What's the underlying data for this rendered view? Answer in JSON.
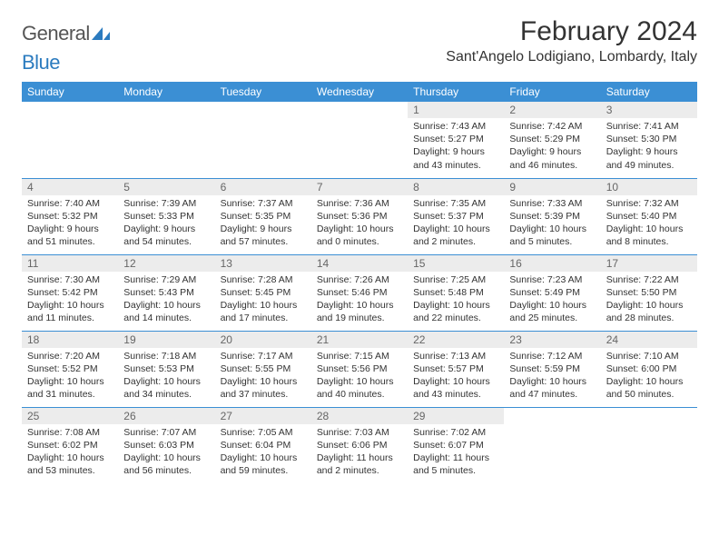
{
  "brand": {
    "part1": "General",
    "part2": "Blue"
  },
  "title": "February 2024",
  "location": "Sant'Angelo Lodigiano, Lombardy, Italy",
  "colors": {
    "header_bg": "#3b8fd4",
    "header_text": "#ffffff",
    "daynum_bg": "#ececec",
    "row_border": "#3b8fd4",
    "brand_blue": "#2b7bbf"
  },
  "weekdays": [
    "Sunday",
    "Monday",
    "Tuesday",
    "Wednesday",
    "Thursday",
    "Friday",
    "Saturday"
  ],
  "weeks": [
    [
      null,
      null,
      null,
      null,
      {
        "n": "1",
        "sr": "7:43 AM",
        "ss": "5:27 PM",
        "dl": "9 hours and 43 minutes."
      },
      {
        "n": "2",
        "sr": "7:42 AM",
        "ss": "5:29 PM",
        "dl": "9 hours and 46 minutes."
      },
      {
        "n": "3",
        "sr": "7:41 AM",
        "ss": "5:30 PM",
        "dl": "9 hours and 49 minutes."
      }
    ],
    [
      {
        "n": "4",
        "sr": "7:40 AM",
        "ss": "5:32 PM",
        "dl": "9 hours and 51 minutes."
      },
      {
        "n": "5",
        "sr": "7:39 AM",
        "ss": "5:33 PM",
        "dl": "9 hours and 54 minutes."
      },
      {
        "n": "6",
        "sr": "7:37 AM",
        "ss": "5:35 PM",
        "dl": "9 hours and 57 minutes."
      },
      {
        "n": "7",
        "sr": "7:36 AM",
        "ss": "5:36 PM",
        "dl": "10 hours and 0 minutes."
      },
      {
        "n": "8",
        "sr": "7:35 AM",
        "ss": "5:37 PM",
        "dl": "10 hours and 2 minutes."
      },
      {
        "n": "9",
        "sr": "7:33 AM",
        "ss": "5:39 PM",
        "dl": "10 hours and 5 minutes."
      },
      {
        "n": "10",
        "sr": "7:32 AM",
        "ss": "5:40 PM",
        "dl": "10 hours and 8 minutes."
      }
    ],
    [
      {
        "n": "11",
        "sr": "7:30 AM",
        "ss": "5:42 PM",
        "dl": "10 hours and 11 minutes."
      },
      {
        "n": "12",
        "sr": "7:29 AM",
        "ss": "5:43 PM",
        "dl": "10 hours and 14 minutes."
      },
      {
        "n": "13",
        "sr": "7:28 AM",
        "ss": "5:45 PM",
        "dl": "10 hours and 17 minutes."
      },
      {
        "n": "14",
        "sr": "7:26 AM",
        "ss": "5:46 PM",
        "dl": "10 hours and 19 minutes."
      },
      {
        "n": "15",
        "sr": "7:25 AM",
        "ss": "5:48 PM",
        "dl": "10 hours and 22 minutes."
      },
      {
        "n": "16",
        "sr": "7:23 AM",
        "ss": "5:49 PM",
        "dl": "10 hours and 25 minutes."
      },
      {
        "n": "17",
        "sr": "7:22 AM",
        "ss": "5:50 PM",
        "dl": "10 hours and 28 minutes."
      }
    ],
    [
      {
        "n": "18",
        "sr": "7:20 AM",
        "ss": "5:52 PM",
        "dl": "10 hours and 31 minutes."
      },
      {
        "n": "19",
        "sr": "7:18 AM",
        "ss": "5:53 PM",
        "dl": "10 hours and 34 minutes."
      },
      {
        "n": "20",
        "sr": "7:17 AM",
        "ss": "5:55 PM",
        "dl": "10 hours and 37 minutes."
      },
      {
        "n": "21",
        "sr": "7:15 AM",
        "ss": "5:56 PM",
        "dl": "10 hours and 40 minutes."
      },
      {
        "n": "22",
        "sr": "7:13 AM",
        "ss": "5:57 PM",
        "dl": "10 hours and 43 minutes."
      },
      {
        "n": "23",
        "sr": "7:12 AM",
        "ss": "5:59 PM",
        "dl": "10 hours and 47 minutes."
      },
      {
        "n": "24",
        "sr": "7:10 AM",
        "ss": "6:00 PM",
        "dl": "10 hours and 50 minutes."
      }
    ],
    [
      {
        "n": "25",
        "sr": "7:08 AM",
        "ss": "6:02 PM",
        "dl": "10 hours and 53 minutes."
      },
      {
        "n": "26",
        "sr": "7:07 AM",
        "ss": "6:03 PM",
        "dl": "10 hours and 56 minutes."
      },
      {
        "n": "27",
        "sr": "7:05 AM",
        "ss": "6:04 PM",
        "dl": "10 hours and 59 minutes."
      },
      {
        "n": "28",
        "sr": "7:03 AM",
        "ss": "6:06 PM",
        "dl": "11 hours and 2 minutes."
      },
      {
        "n": "29",
        "sr": "7:02 AM",
        "ss": "6:07 PM",
        "dl": "11 hours and 5 minutes."
      },
      null,
      null
    ]
  ],
  "labels": {
    "sunrise": "Sunrise:",
    "sunset": "Sunset:",
    "daylight": "Daylight:"
  }
}
